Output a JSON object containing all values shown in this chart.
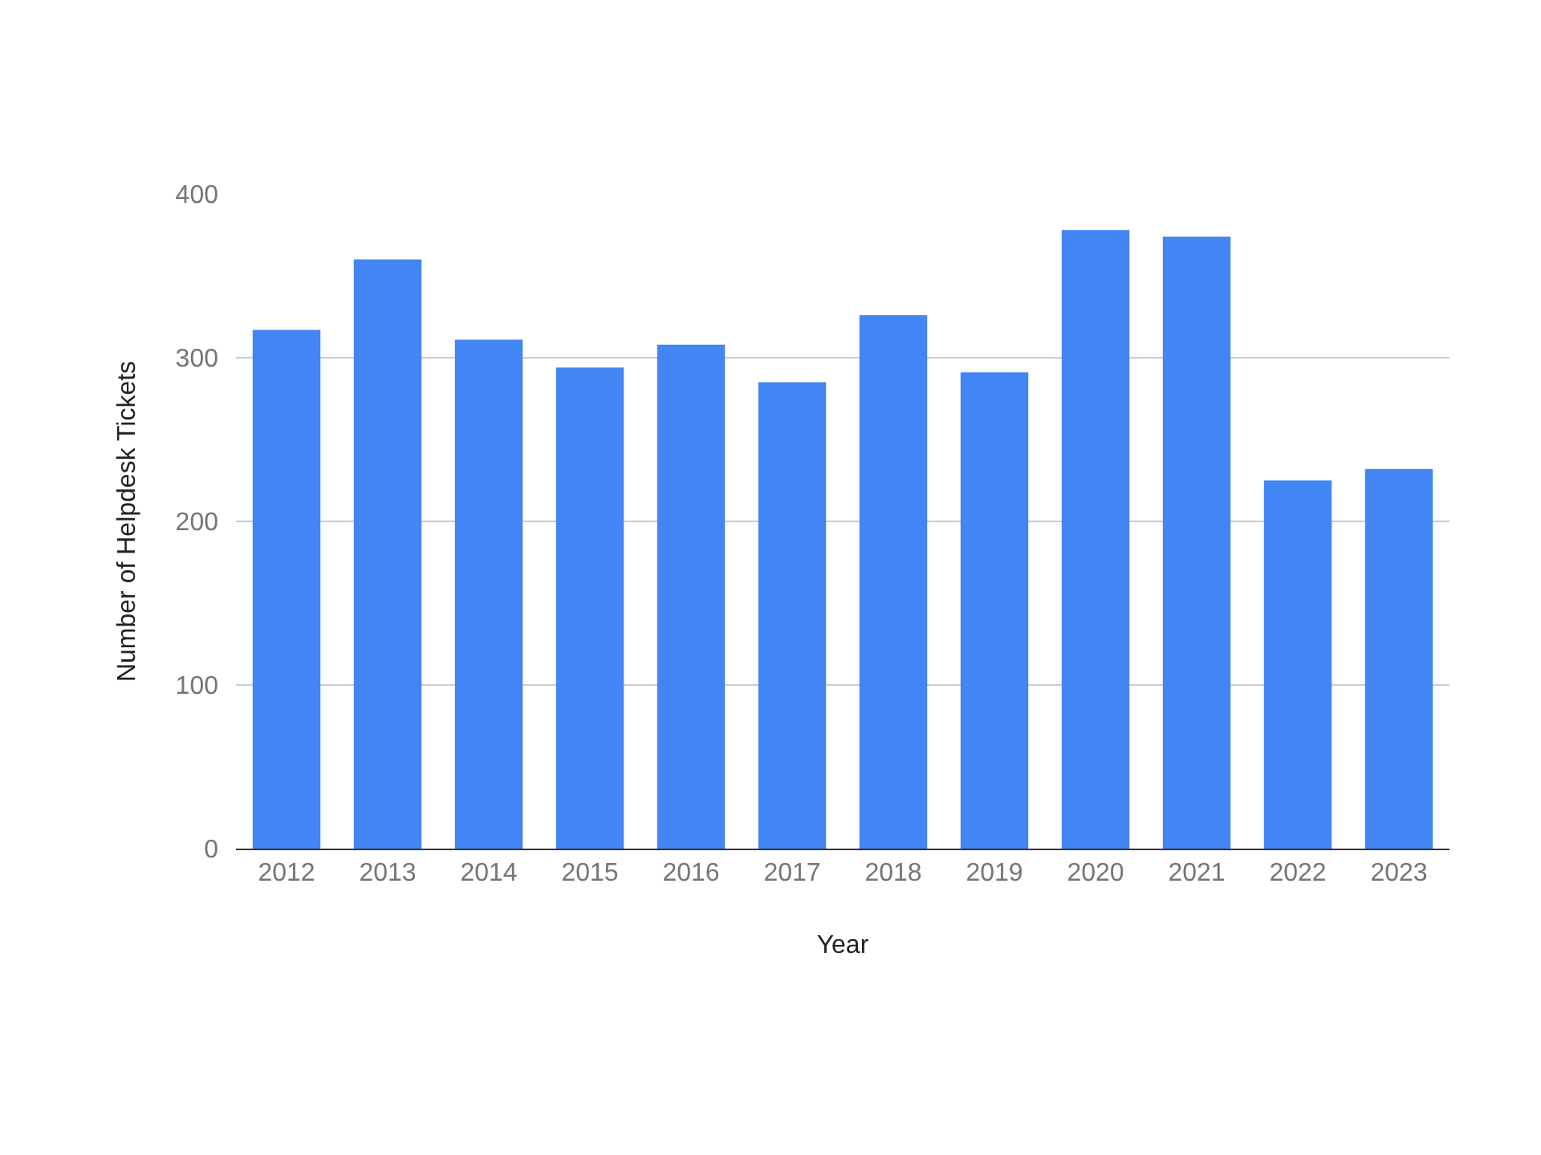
{
  "chart_data": {
    "type": "bar",
    "xlabel": "Year",
    "ylabel": "Number of Helpdesk Tickets",
    "categories": [
      "2012",
      "2013",
      "2014",
      "2015",
      "2016",
      "2017",
      "2018",
      "2019",
      "2020",
      "2021",
      "2022",
      "2023"
    ],
    "series": [
      {
        "color": "#4285f4",
        "values": [
          317,
          360,
          311,
          294,
          308,
          285,
          326,
          291,
          378,
          374,
          225,
          232
        ]
      }
    ],
    "ylim": [
      0,
      400
    ],
    "yticks": [
      0,
      100,
      200,
      300,
      400
    ],
    "grid": "y",
    "legend": false
  }
}
